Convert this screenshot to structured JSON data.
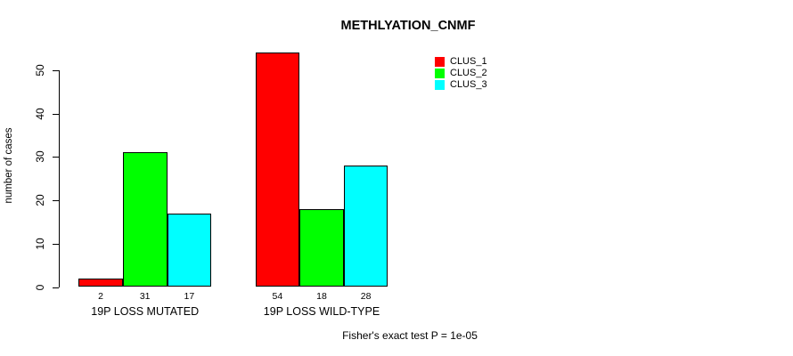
{
  "title": "METHLYATION_CNMF",
  "ylabel": "number of cases",
  "footer": "Fisher's exact test P = 1e-05",
  "legend": {
    "entries": [
      {
        "label": "CLUS_1",
        "color": "#ff0000"
      },
      {
        "label": "CLUS_2",
        "color": "#00ff00"
      },
      {
        "label": "CLUS_3",
        "color": "#00ffff"
      }
    ]
  },
  "chart_data": {
    "type": "bar",
    "title": "METHLYATION_CNMF",
    "xlabel": "",
    "ylabel": "number of cases",
    "categories": [
      "19P LOSS MUTATED",
      "19P LOSS WILD-TYPE"
    ],
    "series": [
      {
        "name": "CLUS_1",
        "color": "#ff0000",
        "values": [
          2,
          54
        ]
      },
      {
        "name": "CLUS_2",
        "color": "#00ff00",
        "values": [
          31,
          18
        ]
      },
      {
        "name": "CLUS_3",
        "color": "#00ffff",
        "values": [
          17,
          28
        ]
      }
    ],
    "bar_value_labels": [
      [
        "2",
        "31",
        "17"
      ],
      [
        "54",
        "18",
        "28"
      ]
    ],
    "ylim": [
      0,
      55
    ],
    "yticks": [
      0,
      10,
      20,
      30,
      40,
      50
    ],
    "grid": false,
    "legend_position": "top-right",
    "annotation": "Fisher's exact test P = 1e-05",
    "bar_border_color": "#000000",
    "background_color": "#ffffff"
  }
}
